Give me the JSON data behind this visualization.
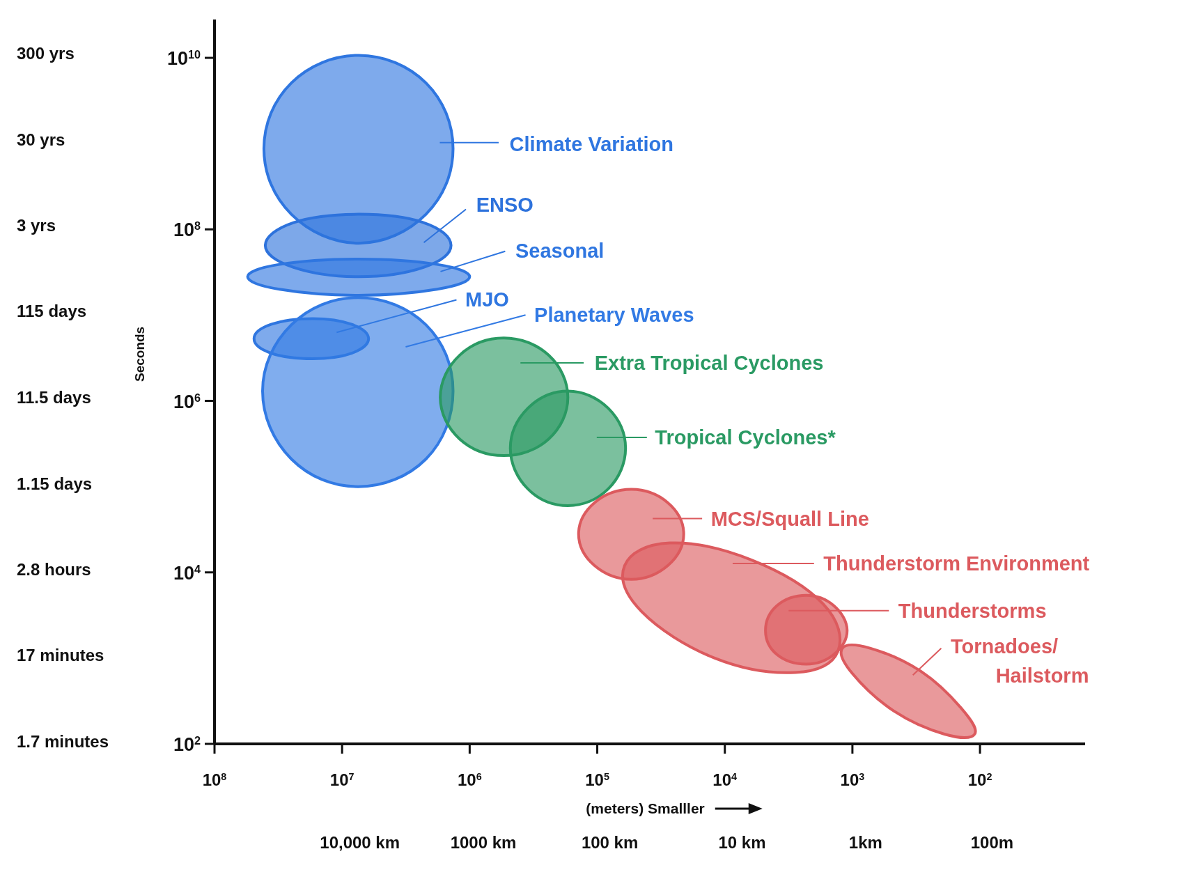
{
  "chart_data": {
    "type": "area",
    "legend": "right",
    "xlabel": "(meters) Smalller",
    "ylabel": "Seconds",
    "log": "xy",
    "xlim": [
      100000000,
      15
    ],
    "xticks": [
      {
        "value": 100000000,
        "label": "10$^{8}$"
      },
      {
        "value": 10000000,
        "label": "10$^{7}$"
      },
      {
        "value": 1000000,
        "label": "10$^{6}$"
      },
      {
        "value": 100000,
        "label": "10$^{5}$"
      },
      {
        "value": 10000,
        "label": "10$^{4}$"
      },
      {
        "value": 1000,
        "label": "10$^{3}$"
      },
      {
        "value": 100,
        "label": "10$^{2}$"
      }
    ],
    "annotations": [
      "300 yrs",
      "30 yrs",
      "3 yrs",
      "115 days",
      "11.5 days",
      "1.15 days",
      "2.8 hours",
      "17 minutes",
      "1.7 minutes",
      "10,000 km",
      "1000 km",
      "100 km",
      "10 km",
      "1km",
      "100m"
    ],
    "ylim": [
      100,
      28000000000
    ],
    "yticks": [
      {
        "value": 10000000000,
        "label": "10$^{10}$"
      },
      {
        "value": 100000000,
        "label": "10$^{8}$"
      },
      {
        "value": 1000000,
        "label": "10$^{6}$"
      },
      {
        "value": 10000,
        "label": "10$^{4}$"
      },
      {
        "value": 100,
        "label": "10$^{2}$"
      }
    ],
    "series": [
      {
        "name": "Climate Variation",
        "color": "#2f76e0",
        "x": [
          41000000,
          25000000,
          7400000,
          2200000,
          1350000,
          2200000,
          7400000,
          25000000
        ],
        "values": [
          870000000,
          5100000000,
          10700000000,
          5100000000,
          870000000,
          150000000,
          69000000,
          150000000
        ]
      },
      {
        "name": "ENSO",
        "color": "#2d72dc",
        "x": [
          40000000,
          24000000,
          7400000,
          2300000,
          1400000,
          2300000,
          7400000,
          24000000
        ],
        "values": [
          65000000,
          120000000,
          150000000,
          120000000,
          65000000,
          36000000,
          28000000,
          36000000
        ]
      },
      {
        "name": "Seasonal",
        "color": "#2f76e0",
        "x": [
          55000000,
          31000000,
          7400000,
          1800000,
          1000000,
          1800000,
          7400000,
          31000000
        ],
        "values": [
          28000000,
          39000000,
          45000000,
          39000000,
          28000000,
          20000000,
          17000000,
          20000000
        ]
      },
      {
        "name": "MJO",
        "color": "#2f76e0",
        "x": [
          49000000,
          36000000,
          17000000,
          8400000,
          6200000,
          8400000,
          17000000,
          36000000
        ],
        "values": [
          5300000,
          7800000,
          9100000,
          7800000,
          5300000,
          3600000,
          3100000,
          3600000
        ]
      },
      {
        "name": "Planetary Waves",
        "color": "#327ae4",
        "x": [
          42000000,
          25000000,
          7500000,
          2200000,
          1350000,
          2200000,
          7500000,
          25000000
        ],
        "values": [
          1300000,
          7700000,
          16000000,
          7700000,
          1300000,
          210000,
          100000,
          210000
        ]
      },
      {
        "name": "Extra Tropical Cyclones",
        "color": "#2a9a63",
        "x": [
          1700000,
          1200000,
          540000,
          240000,
          170000,
          240000,
          540000,
          1200000
        ],
        "values": [
          1100000,
          3400000,
          5400000,
          3400000,
          1100000,
          360000,
          230000,
          360000
        ]
      },
      {
        "name": "Tropical Cyclones*",
        "color": "#2a9a63",
        "x": [
          480000,
          350000,
          170000,
          82000,
          60000,
          82000,
          170000,
          350000
        ],
        "values": [
          280000,
          820000,
          1300000,
          820000,
          280000,
          94000,
          60000,
          94000
        ]
      },
      {
        "name": "MCS/Squall Line",
        "color": "#dc5a5e",
        "x": [
          140000,
          105000,
          54000,
          28000,
          21000,
          28000,
          54000,
          105000
        ],
        "values": [
          28000,
          65000,
          93000,
          65000,
          28000,
          12000,
          8300,
          12000
        ]
      },
      {
        "name": "Thunderstorm Environment",
        "color": "#dc5a5e",
        "x": [
          1300,
          2800,
          12000,
          45000,
          61000,
          27000,
          6200,
          1700
        ],
        "values": [
          1200,
          680,
          1000,
          3500,
          12000,
          22000,
          14000,
          4300
        ]
      },
      {
        "name": "Thunderstorms",
        "color": "#dc5a5e",
        "x": [
          4800,
          3900,
          2300,
          1400,
          1100,
          1400,
          2300,
          3900
        ],
        "values": [
          2100,
          4100,
          5400,
          4100,
          2100,
          1100,
          850,
          1100
        ]
      },
      {
        "name": "Tornadoes/ Hailstorm",
        "color": "#dc5a5e",
        "x": [
          110,
          190,
          470,
          1000,
          1200,
          720,
          290,
          140
        ],
        "values": [
          130,
          130,
          240,
          660,
          1300,
          1300,
          700,
          260
        ]
      }
    ]
  }
}
